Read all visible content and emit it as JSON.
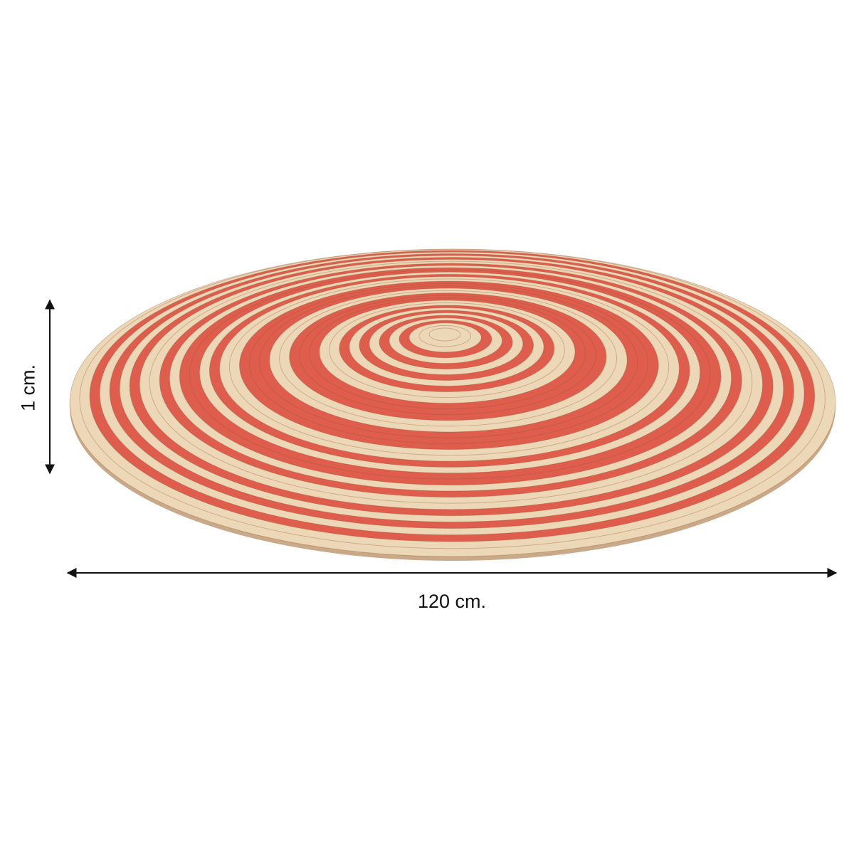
{
  "product": {
    "name": "round-rug",
    "colors": {
      "stripe_red": "#de5d4c",
      "stripe_beige": "#ecd8b6",
      "edge": "#c9a987"
    }
  },
  "dimensions": {
    "height_label": "1 cm.",
    "width_label": "120 cm."
  }
}
